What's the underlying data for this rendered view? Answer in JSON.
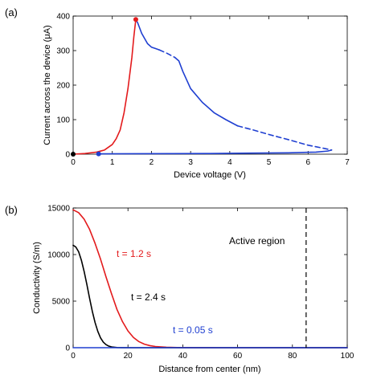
{
  "chart_data": [
    {
      "type": "line",
      "panel_label": "(a)",
      "xlabel": "Device voltage (V)",
      "ylabel": "Current across the device (μA)",
      "xlim": [
        0,
        7
      ],
      "ylim": [
        0,
        400
      ],
      "xticks": [
        "0",
        "1",
        "2",
        "3",
        "4",
        "5",
        "6",
        "7"
      ],
      "yticks": [
        "0",
        "100",
        "200",
        "300",
        "400"
      ],
      "grid": false,
      "colors": {
        "red": "#e31a1c",
        "blue": "#1f3fd1",
        "black": "#000000"
      },
      "series": [
        {
          "style": "solid",
          "color": "red",
          "points": [
            [
              0,
              0
            ],
            [
              0.3,
              2
            ],
            [
              0.6,
              6
            ],
            [
              0.8,
              12
            ],
            [
              1.0,
              28
            ],
            [
              1.1,
              45
            ],
            [
              1.2,
              70
            ],
            [
              1.3,
              120
            ],
            [
              1.4,
              190
            ],
            [
              1.5,
              280
            ],
            [
              1.55,
              340
            ],
            [
              1.6,
              390
            ]
          ]
        },
        {
          "style": "solid",
          "color": "blue",
          "points": [
            [
              1.6,
              390
            ],
            [
              1.65,
              380
            ],
            [
              1.75,
              350
            ],
            [
              1.9,
              320
            ],
            [
              2.0,
              310
            ],
            [
              2.1,
              306
            ],
            [
              2.2,
              302
            ]
          ]
        },
        {
          "style": "dashed",
          "color": "blue",
          "points": [
            [
              2.2,
              302
            ],
            [
              2.4,
              292
            ],
            [
              2.6,
              280
            ]
          ]
        },
        {
          "style": "solid",
          "color": "blue",
          "points": [
            [
              2.6,
              280
            ],
            [
              2.7,
              270
            ],
            [
              2.8,
              240
            ],
            [
              3.0,
              190
            ],
            [
              3.3,
              150
            ],
            [
              3.6,
              120
            ],
            [
              3.9,
              100
            ],
            [
              4.2,
              82
            ]
          ]
        },
        {
          "style": "dashed",
          "color": "blue",
          "points": [
            [
              4.2,
              82
            ],
            [
              4.6,
              70
            ],
            [
              5.0,
              57
            ],
            [
              5.5,
              42
            ],
            [
              6.0,
              26
            ],
            [
              6.4,
              17
            ],
            [
              6.6,
              12
            ]
          ]
        },
        {
          "style": "solid",
          "color": "blue",
          "points": [
            [
              6.6,
              12
            ],
            [
              6.5,
              9
            ],
            [
              6.2,
              6
            ],
            [
              5.5,
              4
            ],
            [
              4.5,
              3
            ],
            [
              3.5,
              2
            ],
            [
              2.5,
              1.5
            ],
            [
              1.5,
              1.2
            ],
            [
              0.65,
              1
            ]
          ]
        }
      ],
      "markers": [
        {
          "x": 1.6,
          "y": 390,
          "color": "red"
        },
        {
          "x": 0.65,
          "y": 1,
          "color": "blue"
        },
        {
          "x": 0,
          "y": 0,
          "color": "black"
        }
      ]
    },
    {
      "type": "line",
      "panel_label": "(b)",
      "xlabel": "Distance from center (nm)",
      "ylabel": "Conductivity (S/m)",
      "xlim": [
        0,
        100
      ],
      "ylim": [
        0,
        15000
      ],
      "xticks": [
        "0",
        "20",
        "40",
        "60",
        "80",
        "100"
      ],
      "yticks": [
        "0",
        "5000",
        "10000",
        "15000"
      ],
      "grid": false,
      "colors": {
        "red": "#e31a1c",
        "blue": "#1f3fd1",
        "black": "#000000"
      },
      "series": [
        {
          "name": "t = 1.2 s",
          "color": "red",
          "style": "solid",
          "points": [
            [
              0,
              14800
            ],
            [
              2,
              14500
            ],
            [
              4,
              13800
            ],
            [
              6,
              12700
            ],
            [
              8,
              11200
            ],
            [
              10,
              9500
            ],
            [
              12,
              7600
            ],
            [
              14,
              5800
            ],
            [
              16,
              4100
            ],
            [
              18,
              2800
            ],
            [
              20,
              1800
            ],
            [
              22,
              1100
            ],
            [
              24,
              650
            ],
            [
              26,
              380
            ],
            [
              28,
              220
            ],
            [
              30,
              130
            ],
            [
              34,
              50
            ],
            [
              38,
              20
            ],
            [
              45,
              5
            ],
            [
              55,
              0
            ],
            [
              100,
              0
            ]
          ]
        },
        {
          "name": "t = 2.4 s",
          "color": "black",
          "style": "solid",
          "points": [
            [
              0,
              11000
            ],
            [
              1,
              10800
            ],
            [
              2,
              10300
            ],
            [
              3,
              9400
            ],
            [
              4,
              8200
            ],
            [
              5,
              6800
            ],
            [
              6,
              5300
            ],
            [
              7,
              3900
            ],
            [
              8,
              2700
            ],
            [
              9,
              1750
            ],
            [
              10,
              1050
            ],
            [
              11,
              600
            ],
            [
              12,
              330
            ],
            [
              13,
              170
            ],
            [
              14,
              80
            ],
            [
              16,
              20
            ],
            [
              18,
              5
            ],
            [
              22,
              0
            ],
            [
              100,
              0
            ]
          ]
        },
        {
          "name": "t = 0.05 s",
          "color": "blue",
          "style": "solid",
          "points": [
            [
              0,
              0
            ],
            [
              100,
              0
            ]
          ]
        }
      ],
      "annotations": [
        {
          "text": "t = 1.2 s",
          "color": "red"
        },
        {
          "text": "t = 2.4 s",
          "color": "black"
        },
        {
          "text": "t = 0.05 s",
          "color": "blue"
        },
        {
          "text": "Active region",
          "color": "black"
        }
      ],
      "vline": {
        "x": 85,
        "style": "dashed",
        "color": "black"
      }
    }
  ]
}
